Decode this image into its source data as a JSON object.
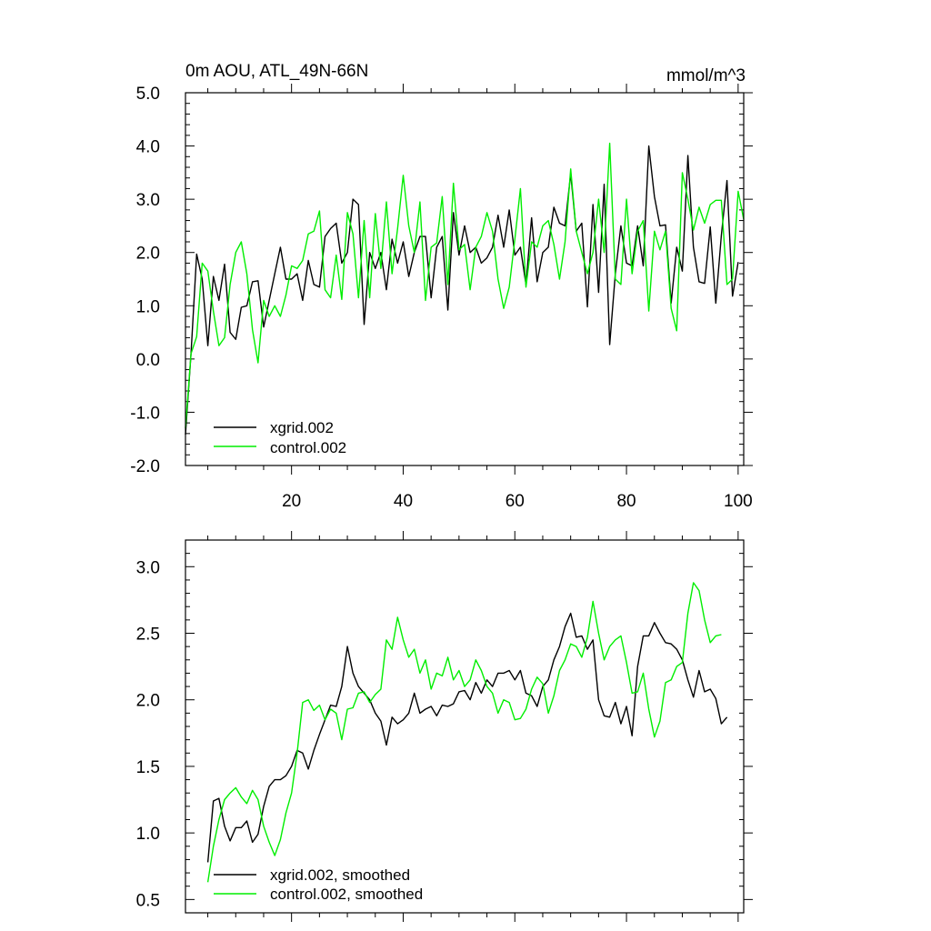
{
  "chart_data": [
    {
      "type": "line",
      "title_left": "0m AOU, ATL_49N-66N",
      "title_right": "mmol/m^3",
      "xlabel": "",
      "ylabel": "",
      "xlim": [
        1,
        101
      ],
      "ylim": [
        -2.0,
        5.0
      ],
      "x_ticks": [
        20,
        40,
        60,
        80,
        100
      ],
      "x_tick_labels": [
        "20",
        "40",
        "60",
        "80",
        "100"
      ],
      "y_ticks": [
        -2.0,
        -1.0,
        0.0,
        1.0,
        2.0,
        3.0,
        4.0,
        5.0
      ],
      "y_tick_labels": [
        "-2.0",
        "-1.0",
        "0.0",
        "1.0",
        "2.0",
        "3.0",
        "4.0",
        "5.0"
      ],
      "legend_position": "bottom-left",
      "series": [
        {
          "name": "xgrid.002",
          "color": "#000000",
          "x_start": 1,
          "values": [
            -1.42,
            0.1,
            1.97,
            1.5,
            0.25,
            1.55,
            1.1,
            1.78,
            0.5,
            0.37,
            0.97,
            1.0,
            1.45,
            1.47,
            0.6,
            1.1,
            1.6,
            2.1,
            1.5,
            1.5,
            1.6,
            1.1,
            1.85,
            1.4,
            1.35,
            2.3,
            2.45,
            2.55,
            1.8,
            2.0,
            3.0,
            2.9,
            0.65,
            2.0,
            1.7,
            2.0,
            1.3,
            2.25,
            1.8,
            2.2,
            1.55,
            2.0,
            2.3,
            2.3,
            1.15,
            2.1,
            2.3,
            0.92,
            2.75,
            1.95,
            2.5,
            2.0,
            2.1,
            1.8,
            1.9,
            2.1,
            2.7,
            2.1,
            2.8,
            1.95,
            2.1,
            1.4,
            2.65,
            1.45,
            2.0,
            2.1,
            2.85,
            2.55,
            2.5,
            3.48,
            2.4,
            2.55,
            0.98,
            2.9,
            1.25,
            3.28,
            0.27,
            1.6,
            2.5,
            1.8,
            1.75,
            2.5,
            1.75,
            4.0,
            3.05,
            2.5,
            2.52,
            1.05,
            2.1,
            1.65,
            3.82,
            2.1,
            1.45,
            1.42,
            2.48,
            1.05,
            2.32,
            3.35,
            1.18,
            1.82
          ]
        },
        {
          "name": "control.002",
          "color": "#00ee00",
          "x_start": 1,
          "values": [
            -1.3,
            0.1,
            0.42,
            1.8,
            1.65,
            0.9,
            0.25,
            0.4,
            1.4,
            2.0,
            2.2,
            1.6,
            0.55,
            -0.07,
            1.1,
            0.8,
            1.0,
            0.8,
            1.2,
            1.75,
            1.7,
            1.85,
            2.35,
            2.4,
            2.78,
            1.3,
            1.15,
            1.95,
            1.12,
            2.75,
            2.35,
            1.15,
            2.6,
            1.15,
            2.73,
            1.7,
            2.95,
            1.6,
            2.45,
            3.45,
            2.5,
            2.0,
            2.95,
            1.1,
            2.1,
            2.18,
            3.05,
            1.4,
            3.3,
            2.05,
            2.15,
            1.3,
            2.1,
            2.3,
            2.75,
            2.4,
            1.5,
            0.95,
            1.35,
            2.25,
            3.2,
            1.35,
            2.2,
            2.1,
            2.5,
            2.6,
            2.15,
            1.5,
            2.2,
            3.57,
            2.4,
            2.0,
            1.6,
            2.0,
            3.0,
            2.0,
            4.05,
            1.5,
            1.4,
            3.0,
            1.6,
            2.4,
            2.6,
            0.9,
            2.4,
            2.05,
            2.4,
            0.95,
            0.53,
            3.5,
            3.0,
            2.42,
            2.85,
            2.55,
            2.9,
            2.98,
            2.98,
            1.4,
            1.5,
            3.15,
            2.62
          ]
        }
      ]
    },
    {
      "type": "line",
      "title_left": "",
      "title_right": "",
      "xlabel": "",
      "ylabel": "",
      "xlim": [
        1,
        101
      ],
      "ylim": [
        0.4,
        3.2
      ],
      "x_ticks": [
        20,
        40,
        60,
        80,
        100
      ],
      "x_tick_labels": [],
      "y_ticks": [
        0.5,
        1.0,
        1.5,
        2.0,
        2.5,
        3.0
      ],
      "y_tick_labels": [
        "0.5",
        "1.0",
        "1.5",
        "2.0",
        "2.5",
        "3.0"
      ],
      "legend_position": "bottom-left",
      "series": [
        {
          "name": "xgrid.002, smoothed",
          "color": "#000000",
          "x_start": 5,
          "values": [
            0.78,
            1.24,
            1.26,
            1.05,
            0.94,
            1.04,
            1.04,
            1.09,
            0.93,
            0.99,
            1.2,
            1.35,
            1.4,
            1.4,
            1.43,
            1.5,
            1.62,
            1.6,
            1.48,
            1.62,
            1.74,
            1.85,
            1.96,
            1.95,
            2.1,
            2.4,
            2.2,
            2.1,
            2.05,
            2.0,
            1.9,
            1.84,
            1.66,
            1.87,
            1.82,
            1.85,
            1.9,
            2.05,
            1.9,
            1.93,
            1.95,
            1.88,
            1.96,
            1.95,
            1.97,
            2.06,
            2.07,
            2.0,
            2.13,
            2.05,
            2.15,
            2.1,
            2.2,
            2.2,
            2.22,
            2.15,
            2.22,
            2.05,
            2.03,
            1.95,
            2.1,
            2.15,
            2.3,
            2.4,
            2.55,
            2.65,
            2.47,
            2.48,
            2.38,
            2.45,
            2.0,
            1.88,
            1.87,
            1.98,
            1.82,
            1.95,
            1.73,
            2.25,
            2.48,
            2.48,
            2.58,
            2.5,
            2.43,
            2.42,
            2.38,
            2.3,
            2.15,
            2.02,
            2.22,
            2.06,
            2.08,
            2.01,
            1.82,
            1.87
          ]
        },
        {
          "name": "control.002, smoothed",
          "color": "#00ee00",
          "x_start": 5,
          "values": [
            0.63,
            0.9,
            1.1,
            1.25,
            1.3,
            1.34,
            1.27,
            1.22,
            1.32,
            1.25,
            1.05,
            0.93,
            0.83,
            0.95,
            1.15,
            1.3,
            1.6,
            1.98,
            2.0,
            1.92,
            1.96,
            1.85,
            1.93,
            1.9,
            1.7,
            1.93,
            1.94,
            2.05,
            2.06,
            1.98,
            2.04,
            2.08,
            2.45,
            2.38,
            2.62,
            2.45,
            2.32,
            2.38,
            2.2,
            2.3,
            2.08,
            2.2,
            2.18,
            2.32,
            2.15,
            2.22,
            2.1,
            2.15,
            2.3,
            2.22,
            2.1,
            2.05,
            1.9,
            2.0,
            1.98,
            1.85,
            1.86,
            1.93,
            2.08,
            2.17,
            2.12,
            1.9,
            2.03,
            2.22,
            2.3,
            2.42,
            2.4,
            2.32,
            2.47,
            2.74,
            2.5,
            2.3,
            2.4,
            2.45,
            2.48,
            2.28,
            2.05,
            2.06,
            2.2,
            1.93,
            1.72,
            1.84,
            2.13,
            2.15,
            2.25,
            2.28,
            2.65,
            2.88,
            2.82,
            2.6,
            2.43,
            2.48,
            2.49
          ]
        }
      ]
    }
  ]
}
